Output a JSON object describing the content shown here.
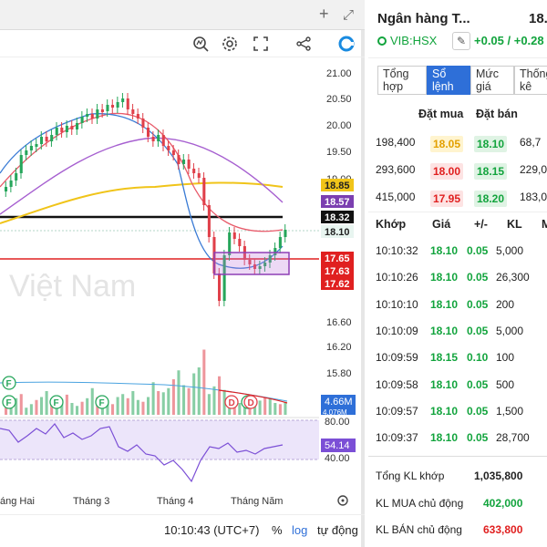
{
  "window": {
    "add_icon": "plus-icon",
    "fullscreen_icon": "expand-icon"
  },
  "toolbar": {
    "icons": [
      "indicator-icon",
      "gear-icon",
      "fullscreen-icon",
      "share-icon",
      "logo-icon"
    ]
  },
  "chart": {
    "watermark": "Việt Nam",
    "price_axis_ticks": [
      "21.00",
      "20.50",
      "20.00",
      "19.50",
      "19.00",
      "16.60",
      "16.20",
      "15.80"
    ],
    "price_labels": [
      {
        "text": "18.85",
        "bg": "#f0c419",
        "fg": "#222"
      },
      {
        "text": "18.57",
        "bg": "#7b3fb0",
        "fg": "#fff"
      },
      {
        "text": "18.32",
        "bg": "#111111",
        "fg": "#fff"
      },
      {
        "text": "18.10",
        "bg": "#e8f5f0",
        "fg": "#222"
      },
      {
        "text": "17.65",
        "bg": "#e02020",
        "fg": "#fff"
      },
      {
        "text": "17.63",
        "bg": "#e02020",
        "fg": "#fff"
      },
      {
        "text": "17.62",
        "bg": "#e02020",
        "fg": "#fff"
      }
    ],
    "volume_label": "4.66M",
    "volume_label2": "4.076M",
    "rsi_ticks": [
      "80.00",
      "40.00"
    ],
    "rsi_value": "54.14",
    "event_markers": [
      "F",
      "F",
      "F",
      "F",
      "F",
      "D",
      "D"
    ],
    "x_labels": [
      "áng Hai",
      "Tháng 3",
      "Tháng 4",
      "Tháng Năm"
    ],
    "bottom": {
      "time": "10:10:43 (UTC+7)",
      "percent": "%",
      "log": "log",
      "auto": "tự động"
    },
    "chart_data": {
      "type": "line",
      "title": "",
      "price_levels": [
        21.0,
        20.5,
        20.0,
        19.5,
        19.0,
        18.85,
        18.57,
        18.32,
        18.1,
        17.65,
        17.63,
        17.62,
        16.6,
        16.2,
        15.8
      ],
      "rsi_current": 54.14,
      "rsi_range": [
        40,
        80
      ],
      "volume_current": "4.66M",
      "x_categories": [
        "áng Hai",
        "Tháng 3",
        "Tháng 4",
        "Tháng Năm"
      ]
    }
  },
  "stock": {
    "name": "Ngân hàng T...",
    "price": "18.",
    "ticker": "VIB:HSX",
    "change": "+0.05 / +0.28"
  },
  "tabs": [
    "Tổng hợp",
    "Sổ lệnh",
    "Mức giá",
    "Thống kê"
  ],
  "orderbook": {
    "header_bid": "Đặt mua",
    "header_ask": "Đặt bán",
    "rows": [
      {
        "bid_vol": "198,400",
        "bid": "18.05",
        "ask": "18.10",
        "ask_vol": "68,7"
      },
      {
        "bid_vol": "293,600",
        "bid": "18.00",
        "ask": "18.15",
        "ask_vol": "229,0"
      },
      {
        "bid_vol": "415,000",
        "bid": "17.95",
        "ask": "18.20",
        "ask_vol": "183,0"
      }
    ]
  },
  "matches": {
    "headers": [
      "Khớp",
      "Giá",
      "+/-",
      "KL",
      "M"
    ],
    "rows": [
      {
        "time": "10:10:32",
        "price": "18.10",
        "change": "0.05",
        "vol": "5,000"
      },
      {
        "time": "10:10:26",
        "price": "18.10",
        "change": "0.05",
        "vol": "26,300"
      },
      {
        "time": "10:10:10",
        "price": "18.10",
        "change": "0.05",
        "vol": "200"
      },
      {
        "time": "10:10:09",
        "price": "18.10",
        "change": "0.05",
        "vol": "5,000"
      },
      {
        "time": "10:09:59",
        "price": "18.15",
        "change": "0.10",
        "vol": "100"
      },
      {
        "time": "10:09:58",
        "price": "18.10",
        "change": "0.05",
        "vol": "500"
      },
      {
        "time": "10:09:57",
        "price": "18.10",
        "change": "0.05",
        "vol": "1,500"
      },
      {
        "time": "10:09:37",
        "price": "18.10",
        "change": "0.05",
        "vol": "28,700"
      }
    ]
  },
  "summary": {
    "total_label": "Tổng KL khớp",
    "total_value": "1,035,800",
    "buy_label": "KL MUA chủ động",
    "buy_value": "402,000",
    "sell_label": "KL BÁN chủ động",
    "sell_value": "633,800"
  }
}
